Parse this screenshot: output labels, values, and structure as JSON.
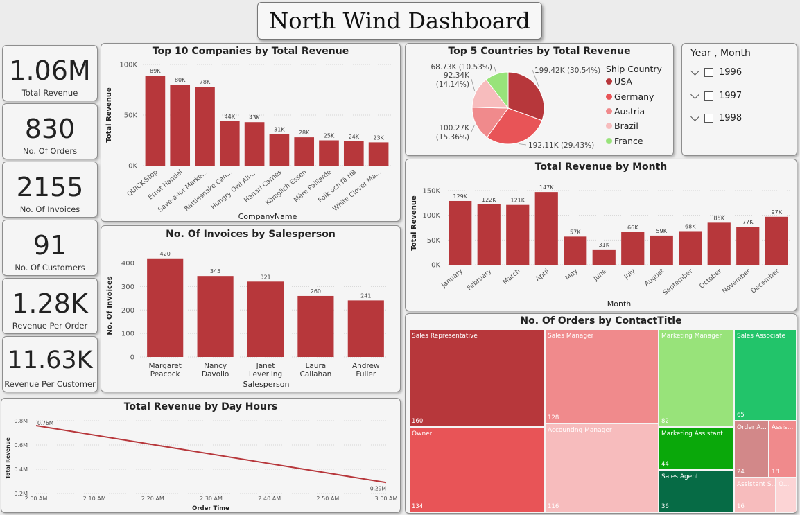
{
  "dashboard_title": "North Wind Dashboard",
  "kpis": [
    {
      "value": "1.06M",
      "label": "Total Revenue"
    },
    {
      "value": "830",
      "label": "No. Of Orders"
    },
    {
      "value": "2155",
      "label": "No. Of Invoices"
    },
    {
      "value": "91",
      "label": "No. Of Customers"
    },
    {
      "value": "1.28K",
      "label": "Revenue Per Order"
    },
    {
      "value": "11.63K",
      "label": "Revenue Per Customer"
    }
  ],
  "slicer": {
    "title": "Year , Month",
    "items": [
      "1996",
      "1997",
      "1998"
    ]
  },
  "colors": {
    "bar": "#b7373b",
    "line": "#b7373b"
  },
  "chart_data": [
    {
      "id": "top-companies",
      "type": "bar",
      "title": "Top 10 Companies by Total Revenue",
      "xlabel": "CompanyName",
      "ylabel": "Total Revenue",
      "categories": [
        "QUICK-Stop",
        "Ernst Handel",
        "Save-a-lot Marke...",
        "Rattlesnake Can...",
        "Hungry Owl All-...",
        "Hanari Carnes",
        "Königlich Essen",
        "Mère Paillarde",
        "Folk och fä HB",
        "White Clover Ma..."
      ],
      "values": [
        89,
        80,
        78,
        44,
        43,
        31,
        28,
        25,
        24,
        23
      ],
      "data_labels": [
        "89K",
        "80K",
        "78K",
        "44K",
        "43K",
        "31K",
        "28K",
        "25K",
        "24K",
        "23K"
      ],
      "yticks": [
        "0K",
        "50K",
        "100K"
      ],
      "ylim": [
        0,
        100
      ],
      "grid": true
    },
    {
      "id": "invoices-salesperson",
      "type": "bar",
      "title": "No. Of Invoices by Salesperson",
      "xlabel": "Salesperson",
      "ylabel": "No. Of Invoices",
      "categories": [
        [
          "Margaret",
          "Peacock"
        ],
        [
          "Nancy",
          "Davolio"
        ],
        [
          "Janet",
          "Leverling"
        ],
        [
          "Laura",
          "Callahan"
        ],
        [
          "Andrew",
          "Fuller"
        ]
      ],
      "values": [
        420,
        345,
        321,
        260,
        241
      ],
      "data_labels": [
        "420",
        "345",
        "321",
        "260",
        "241"
      ],
      "yticks": [
        "0",
        "100",
        "200",
        "300",
        "400"
      ],
      "ylim": [
        0,
        440
      ],
      "grid": true
    },
    {
      "id": "revenue-day-hours",
      "type": "line",
      "title": "Total Revenue by Day Hours",
      "xlabel": "Order Time",
      "ylabel": "Total Revenue",
      "x": [
        "2:00 AM",
        "3:00 AM"
      ],
      "y": [
        0.76,
        0.29
      ],
      "data_labels": [
        "0.76M",
        "0.29M"
      ],
      "xticks": [
        "2:00 AM",
        "2:10 AM",
        "2:20 AM",
        "2:30 AM",
        "2:40 AM",
        "2:50 AM",
        "3:00 AM"
      ],
      "yticks": [
        "0.2M",
        "0.4M",
        "0.6M",
        "0.8M"
      ],
      "ylim": [
        0.2,
        0.8
      ],
      "grid": true
    },
    {
      "id": "top-countries",
      "type": "pie",
      "title": "Top 5 Countries by Total Revenue",
      "legend_title": "Ship Country",
      "legend_position": "right",
      "slices": [
        {
          "name": "USA",
          "value": 199.42,
          "label": "199.42K (30.54%)",
          "color": "#b7373b"
        },
        {
          "name": "Germany",
          "value": 192.11,
          "label": "192.11K (29.43%)",
          "color": "#e85457"
        },
        {
          "name": "Austria",
          "value": 100.27,
          "label": "100.27K (15.36%)",
          "color": "#f08a8c"
        },
        {
          "name": "Brazil",
          "value": 92.34,
          "label": "92.34K (14.14%)",
          "color": "#f7bcbd"
        },
        {
          "name": "France",
          "value": 68.73,
          "label": "68.73K (10.53%)",
          "color": "#98e37a"
        }
      ]
    },
    {
      "id": "revenue-month",
      "type": "bar",
      "title": "Total Revenue by Month",
      "xlabel": "Month",
      "ylabel": "Total Revenue",
      "categories": [
        "January",
        "February",
        "March",
        "April",
        "May",
        "June",
        "July",
        "August",
        "September",
        "October",
        "November",
        "December"
      ],
      "values": [
        129,
        122,
        121,
        147,
        57,
        31,
        66,
        59,
        68,
        85,
        77,
        97
      ],
      "data_labels": [
        "129K",
        "122K",
        "121K",
        "147K",
        "57K",
        "31K",
        "66K",
        "59K",
        "68K",
        "85K",
        "77K",
        "97K"
      ],
      "yticks": [
        "0K",
        "50K",
        "100K",
        "150K"
      ],
      "ylim": [
        0,
        150
      ],
      "grid": true
    },
    {
      "id": "orders-contact-title",
      "type": "treemap",
      "title": "No. Of Orders by ContactTitle",
      "items": [
        {
          "name": "Sales Representative",
          "value": 160,
          "value_label": "160",
          "color": "#b7373b"
        },
        {
          "name": "Owner",
          "value": 134,
          "value_label": "134",
          "color": "#e85457"
        },
        {
          "name": "Sales Manager",
          "value": 128,
          "value_label": "128",
          "color": "#f08a8c"
        },
        {
          "name": "Accounting Manager",
          "value": 116,
          "value_label": "116",
          "color": "#f7bcbd"
        },
        {
          "name": "Marketing Manager",
          "value": 82,
          "value_label": "82",
          "color": "#98e37a"
        },
        {
          "name": "Marketing Assistant",
          "value": 44,
          "value_label": "44",
          "color": "#0aa80a"
        },
        {
          "name": "Sales Agent",
          "value": 36,
          "value_label": "36",
          "color": "#066b45"
        },
        {
          "name": "Sales Associate",
          "value": 65,
          "value_label": "65",
          "color": "#22c46a"
        },
        {
          "name": "Order A...",
          "value": 24,
          "value_label": "24",
          "color": "#d28889"
        },
        {
          "name": "Assis...",
          "value": 18,
          "value_label": "18",
          "color": "#f08a8c"
        },
        {
          "name": "Assistant S...",
          "value": 16,
          "value_label": "16",
          "color": "#f7bcbd"
        },
        {
          "name": "O...",
          "value": 0,
          "value_label": "",
          "color": "#fcd4d5"
        }
      ]
    }
  ]
}
